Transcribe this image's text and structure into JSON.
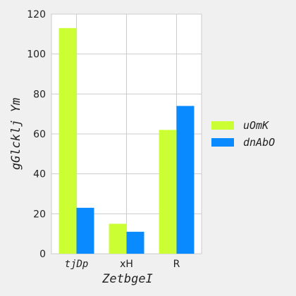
{
  "chart_data": {
    "type": "bar",
    "title": "",
    "xlabel": "ZetbgeI",
    "ylabel": "gGlcklj Ym",
    "categories": [
      "tjDp",
      "xH",
      "R"
    ],
    "series": [
      {
        "name": "uOmK",
        "color": "#ccff33",
        "values": [
          113,
          15,
          62
        ]
      },
      {
        "name": "dnAbO",
        "color": "#0a8aff",
        "values": [
          23,
          11,
          74
        ]
      }
    ],
    "ylim": [
      0,
      120
    ],
    "yticks": [
      0,
      20,
      40,
      60,
      80,
      100,
      120
    ],
    "grid": true,
    "legend_position": "right",
    "background": "#f0f0f0",
    "plot_background": "#ffffff"
  }
}
